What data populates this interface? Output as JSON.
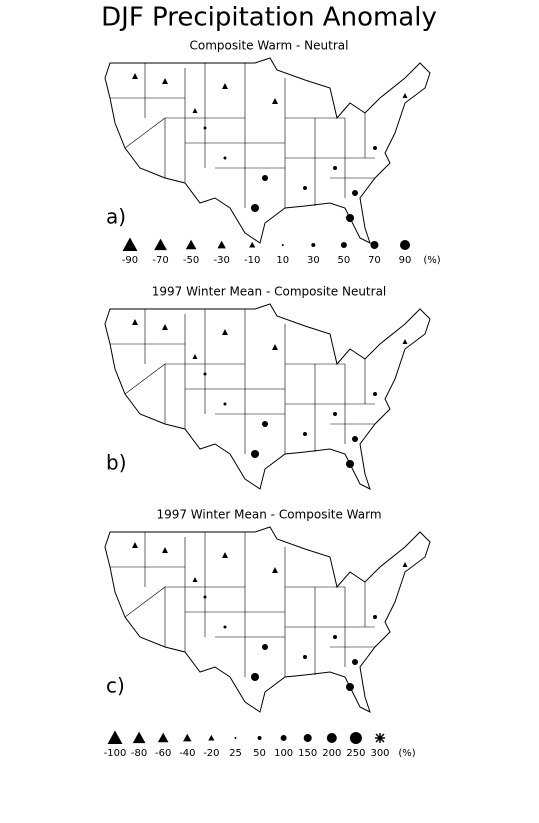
{
  "title": "DJF Precipitation Anomaly",
  "panels": [
    {
      "subtitle": "Composite Warm - Neutral",
      "label": "a)"
    },
    {
      "subtitle": "1997 Winter Mean - Composite Neutral",
      "label": "b)"
    },
    {
      "subtitle": "1997 Winter Mean - Composite Warm",
      "label": "c)"
    }
  ],
  "legends": [
    {
      "items": [
        "-90",
        "-70",
        "-50",
        "-30",
        "-10",
        "10",
        "30",
        "50",
        "70",
        "90"
      ],
      "unit": "(%)"
    },
    {
      "items": [
        "-100",
        "-80",
        "-60",
        "-40",
        "-20",
        "25",
        "50",
        "100",
        "150",
        "200",
        "250",
        "300"
      ],
      "unit": "(%)"
    }
  ]
}
